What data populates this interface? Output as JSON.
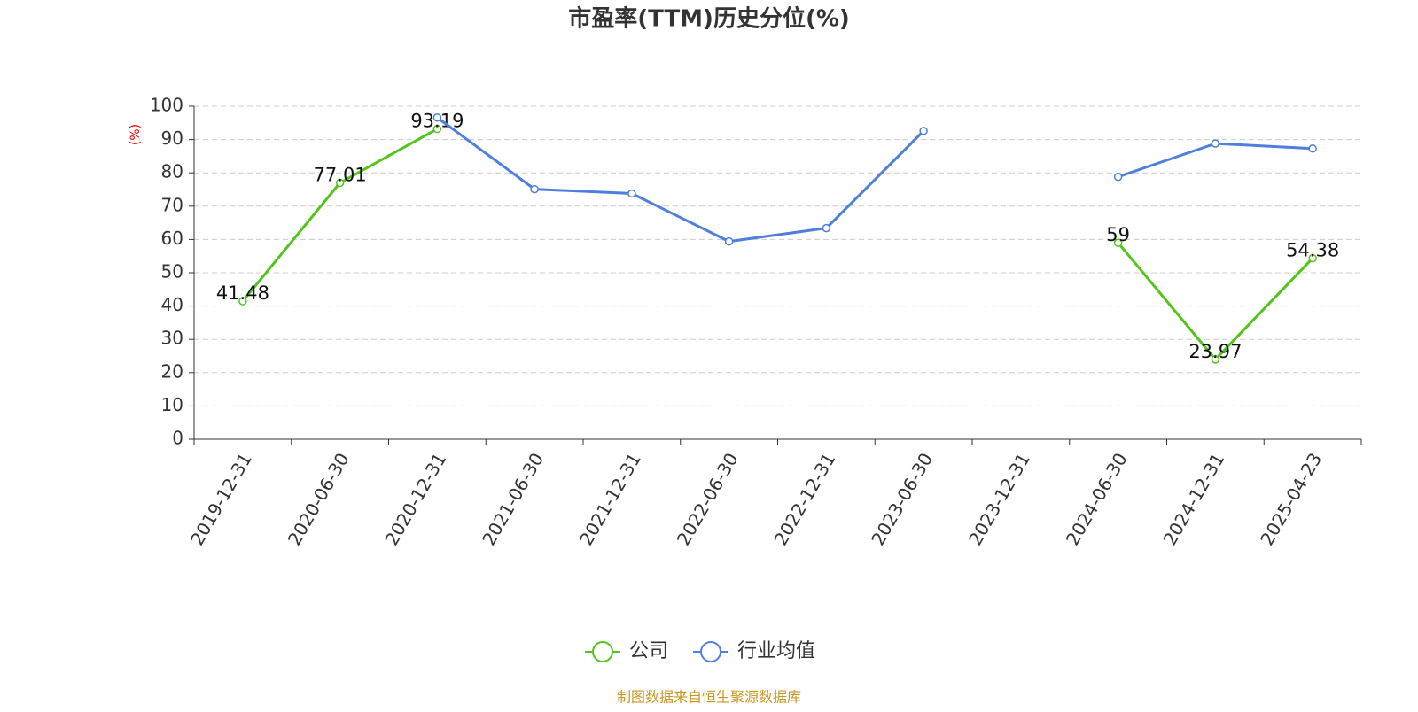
{
  "chart_data": {
    "type": "line",
    "title": "市盈率(TTM)历史分位(%)",
    "y_axis_label": "(%)",
    "source": "制图数据来自恒生聚源数据库",
    "categories": [
      "2019-12-31",
      "2020-06-30",
      "2020-12-31",
      "2021-06-30",
      "2021-12-31",
      "2022-06-30",
      "2022-12-31",
      "2023-06-30",
      "2023-12-31",
      "2024-06-30",
      "2024-12-31",
      "2025-04-23"
    ],
    "series": [
      {
        "name": "公司",
        "color": "#52c41a",
        "show_labels": true,
        "values": [
          41.48,
          77.01,
          93.19,
          null,
          null,
          null,
          null,
          null,
          null,
          59,
          23.97,
          54.38
        ]
      },
      {
        "name": "行业均值",
        "color": "#4e7fdc",
        "show_labels": false,
        "values": [
          null,
          null,
          96.6,
          75.1,
          73.8,
          59.4,
          63.4,
          92.6,
          null,
          78.8,
          88.8,
          87.3
        ]
      }
    ],
    "ylim": [
      0,
      100
    ],
    "yticks": [
      0,
      10,
      20,
      30,
      40,
      50,
      60,
      70,
      80,
      90,
      100
    ],
    "grid": true,
    "legend": "bottom"
  }
}
